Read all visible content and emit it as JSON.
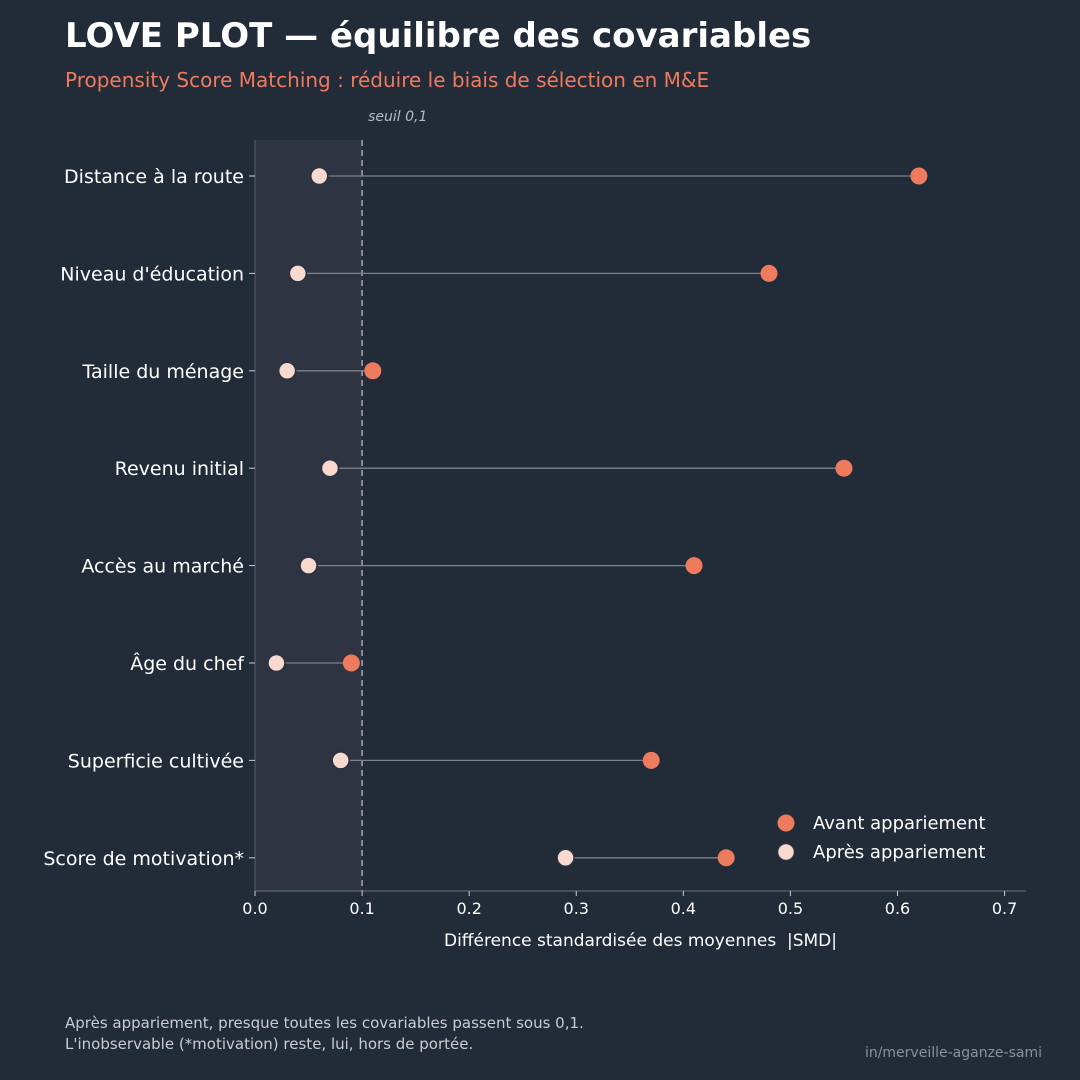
{
  "header": {
    "title": "LOVE PLOT — équilibre des covariables",
    "subtitle": "Propensity Score Matching : réduire le biais de sélection en M&E"
  },
  "footer": {
    "note_line1": "Après appariement, presque toutes les covariables passent sous 0,1.",
    "note_line2": "L'inobservable (*motivation) reste, lui, hors de portée.",
    "credit": "in/merveille-aganze-sami"
  },
  "colors": {
    "background": "#222b38",
    "band": "#2e3442",
    "before": "#ee7b5e",
    "after": "#f8d9cf",
    "connector": "#7c818c"
  },
  "chart_data": {
    "type": "scatter",
    "title": "",
    "xlabel": "Différence standardisée des moyennes  |SMD|",
    "ylabel": "",
    "xlim": [
      0,
      0.72
    ],
    "xticks": [
      0.0,
      0.1,
      0.2,
      0.3,
      0.4,
      0.5,
      0.6,
      0.7
    ],
    "xtick_labels": [
      "0.0",
      "0.1",
      "0.2",
      "0.3",
      "0.4",
      "0.5",
      "0.6",
      "0.7"
    ],
    "threshold": 0.1,
    "threshold_label": "seuil 0,1",
    "grid": false,
    "legend_position": "bottom-right",
    "categories": [
      "Distance à la route",
      "Niveau d'éducation",
      "Taille du ménage",
      "Revenu initial",
      "Accès au marché",
      "Âge du chef",
      "Superficie cultivée",
      "Score de motivation*"
    ],
    "series": [
      {
        "name": "Avant appariement",
        "values": [
          0.62,
          0.48,
          0.11,
          0.55,
          0.41,
          0.09,
          0.37,
          0.44
        ]
      },
      {
        "name": "Après appariement",
        "values": [
          0.06,
          0.04,
          0.03,
          0.07,
          0.05,
          0.02,
          0.08,
          0.29
        ]
      }
    ]
  }
}
